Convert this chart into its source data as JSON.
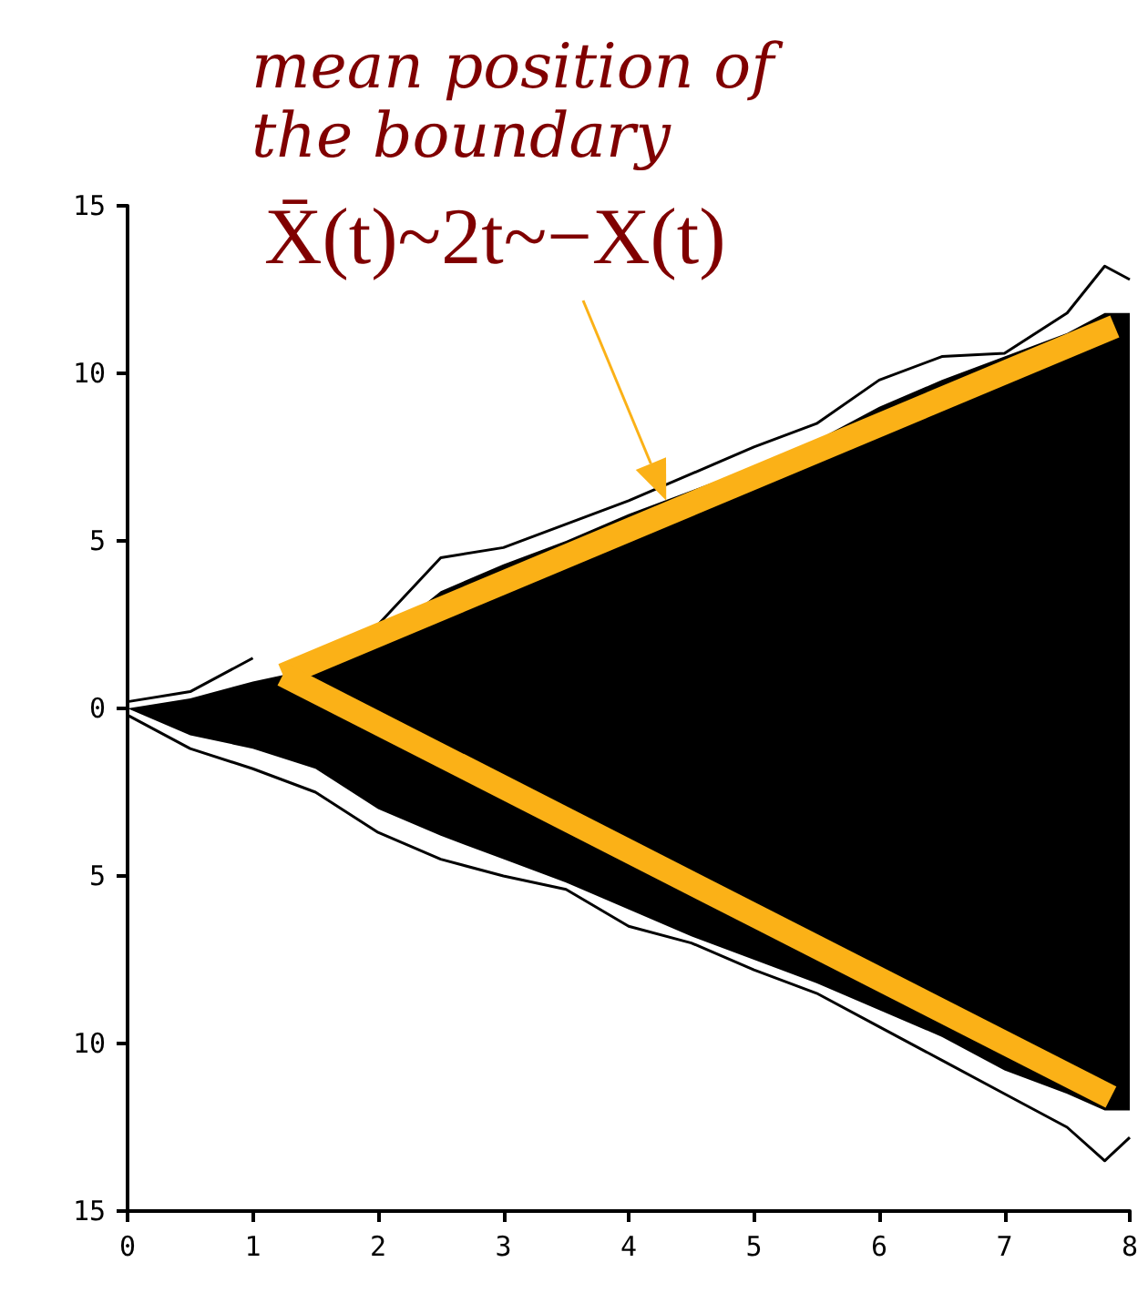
{
  "chart_data": {
    "type": "line",
    "xlim": [
      0,
      8
    ],
    "xticks": [
      0,
      1,
      2,
      3,
      4,
      5,
      6,
      7,
      8
    ],
    "ylim": [
      -15,
      15
    ],
    "yticks": [
      {
        "value": -15,
        "label": "15"
      },
      {
        "value": -10,
        "label": "10"
      },
      {
        "value": -5,
        "label": "5"
      },
      0,
      5,
      10,
      15
    ],
    "grid": false,
    "legend": false,
    "marker": "none",
    "line_style": "solid",
    "annotations": [
      "mean position of\nthe boundary",
      {
        "text": "X̄(t)~2t~−X(t)",
        "x": 4.3,
        "y": 6.2
      }
    ],
    "series": [
      {
        "color": "#000000",
        "x": [
          0,
          0.5,
          1,
          1.5,
          2,
          2.5,
          3,
          3.5,
          4,
          4.5,
          5,
          5.5,
          6,
          6.5,
          7,
          7.5,
          7.8,
          8
        ],
        "values": [
          0.2,
          0.5,
          1.5,
          null,
          2.5,
          4.5,
          4.8,
          5.5,
          6.2,
          7,
          7.8,
          8.5,
          9.8,
          10.5,
          10.6,
          11.8,
          13.2,
          12.8
        ],
        "lower": [
          0,
          -0.8,
          -1.2,
          -1.8,
          -3,
          -3.8,
          -4.5,
          -5.2,
          -6,
          -6.8,
          -7.5,
          -8.2,
          -9,
          -9.8,
          -10.8,
          -11.5,
          -12,
          -12
        ],
        "upper": [
          0,
          0.3,
          0.8,
          1.2,
          2,
          3.5,
          4.3,
          5,
          5.8,
          6.5,
          7.2,
          8,
          9,
          9.8,
          10.5,
          11.2,
          11.8,
          11.8
        ]
      },
      {
        "color": "#000000",
        "x": [
          0,
          0.5,
          1,
          1.5,
          2,
          2.5,
          3,
          3.5,
          4,
          4.5,
          5,
          5.5,
          6,
          6.5,
          7,
          7.5,
          7.8,
          8
        ],
        "values": [
          -0.2,
          -1.2,
          -1.8,
          -2.5,
          -3.7,
          -4.5,
          -5,
          -5.4,
          -6.5,
          -7,
          -7.8,
          -8.5,
          -9.5,
          -10.5,
          -11.5,
          -12.5,
          -13.5,
          -12.8
        ]
      },
      {
        "color": "#fbb117",
        "x": [
          1.24,
          7.88
        ],
        "values": [
          1.0,
          11.4
        ]
      },
      {
        "color": "#fbb117",
        "x": [
          1.24,
          7.85
        ],
        "values": [
          1.0,
          -11.6
        ]
      }
    ]
  }
}
